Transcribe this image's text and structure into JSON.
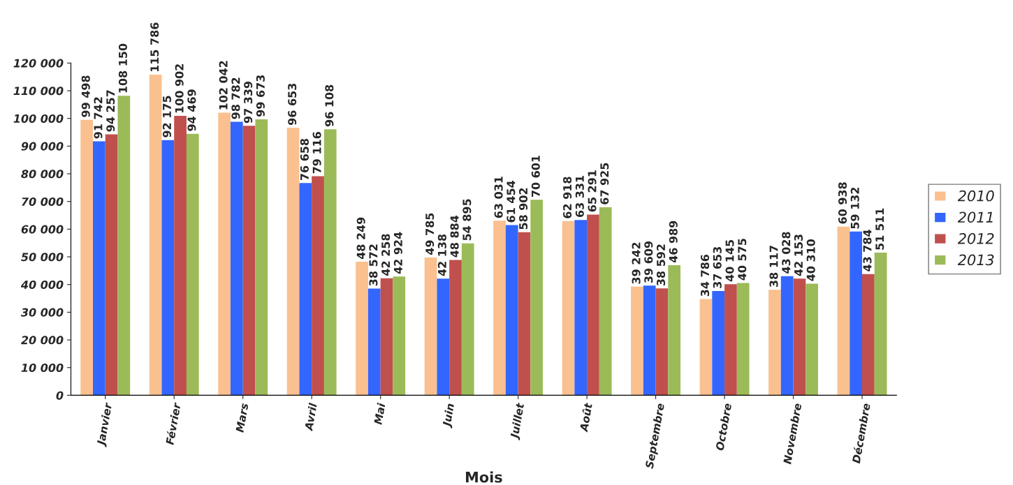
{
  "chart_data": {
    "type": "bar",
    "xlabel": "Mois",
    "categories": [
      "Janvier",
      "Février",
      "Mars",
      "Avril",
      "Mai",
      "Juin",
      "Juillet",
      "Août",
      "Septembre",
      "Octobre",
      "Novembre",
      "Décembre"
    ],
    "series": [
      {
        "name": "2010",
        "color": "#fac090",
        "values": [
          99498,
          115786,
          102042,
          96653,
          48249,
          49785,
          63031,
          62918,
          39242,
          34786,
          38117,
          60938
        ],
        "value_labels": [
          "99 498",
          "115 786",
          "102 042",
          "96 653",
          "48 249",
          "49 785",
          "63 031",
          "62 918",
          "39 242",
          "34 786",
          "38 117",
          "60 938"
        ]
      },
      {
        "name": "2011",
        "color": "#3366ff",
        "values": [
          91742,
          92175,
          98782,
          76658,
          38572,
          42138,
          61454,
          63331,
          39609,
          37653,
          43028,
          59132
        ],
        "value_labels": [
          "91 742",
          "92 175",
          "98 782",
          "76 658",
          "38 572",
          "42 138",
          "61 454",
          "63 331",
          "39 609",
          "37 653",
          "43 028",
          "59 132"
        ]
      },
      {
        "name": "2012",
        "color": "#c0504d",
        "values": [
          94257,
          100902,
          97339,
          79116,
          42258,
          48884,
          58902,
          65291,
          38592,
          40145,
          42153,
          43784
        ],
        "value_labels": [
          "94 257",
          "100 902",
          "97 339",
          "79 116",
          "42 258",
          "48 884",
          "58 902",
          "65 291",
          "38 592",
          "40 145",
          "42 153",
          "43 784"
        ]
      },
      {
        "name": "2013",
        "color": "#9bbb59",
        "values": [
          108150,
          94469,
          99673,
          96108,
          42924,
          54895,
          70601,
          67925,
          46989,
          40575,
          40310,
          51511
        ],
        "value_labels": [
          "108 150",
          "94 469",
          "99 673",
          "96 108",
          "42 924",
          "54 895",
          "70 601",
          "67 925",
          "46 989",
          "40 575",
          "40 310",
          "51 511"
        ]
      }
    ],
    "ylim": [
      0,
      120000
    ],
    "yticks": [
      {
        "value": 0,
        "label": "0"
      },
      {
        "value": 10000,
        "label": "10 000"
      },
      {
        "value": 20000,
        "label": "20 000"
      },
      {
        "value": 30000,
        "label": "30 000"
      },
      {
        "value": 40000,
        "label": "40 000"
      },
      {
        "value": 50000,
        "label": "50 000"
      },
      {
        "value": 60000,
        "label": "60 000"
      },
      {
        "value": 70000,
        "label": "70 000"
      },
      {
        "value": 80000,
        "label": "80 000"
      },
      {
        "value": 90000,
        "label": "90 000"
      },
      {
        "value": 100000,
        "label": "100 000"
      },
      {
        "value": 110000,
        "label": "110 000"
      },
      {
        "value": 120000,
        "label": "120 000"
      }
    ],
    "grid": false,
    "legend": "right"
  }
}
